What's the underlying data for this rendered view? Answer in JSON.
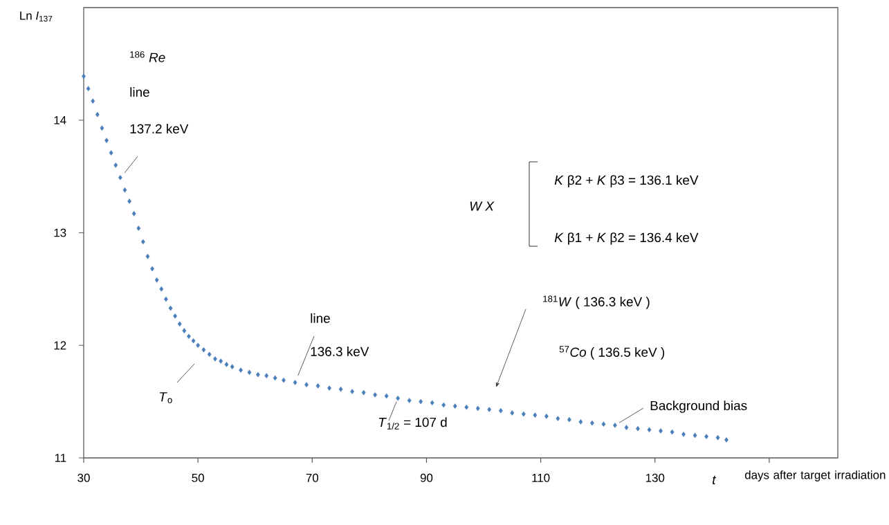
{
  "chart_data": {
    "type": "scatter",
    "xlabel": "days after target irradiation",
    "ylabel": "Ln *I*$_{137}$",
    "xlim": [
      30,
      162
    ],
    "ylim": [
      11,
      15
    ],
    "xticks": [
      30,
      50,
      70,
      90,
      110,
      130,
      {
        "value": 150,
        "label": null
      }
    ],
    "yticks": [
      11,
      12,
      13,
      14
    ],
    "marker": "diamond",
    "x": [
      30,
      30.8,
      31.6,
      32.4,
      33.2,
      34.0,
      34.8,
      35.6,
      36.4,
      37.2,
      38.0,
      38.8,
      39.6,
      40.4,
      41.2,
      42.0,
      42.8,
      43.6,
      44.4,
      45.2,
      46.0,
      46.8,
      47.6,
      48.4,
      49.2,
      50.0,
      51,
      52,
      53,
      54,
      55,
      56,
      57.5,
      59,
      60.5,
      62,
      63.5,
      65,
      67,
      69,
      71,
      73,
      75,
      77,
      79,
      81,
      83,
      85,
      87,
      89,
      91,
      93,
      95,
      97,
      99,
      101,
      103,
      105,
      107,
      109,
      111,
      113,
      115,
      117,
      119,
      121,
      123,
      125,
      127,
      129,
      131,
      133,
      135,
      137,
      139,
      141,
      142.5
    ],
    "series": [
      {
        "color": "#4a7ebb",
        "values": [
          14.39,
          14.28,
          14.17,
          14.05,
          13.93,
          13.82,
          13.71,
          13.6,
          13.49,
          13.38,
          13.28,
          13.17,
          13.04,
          12.92,
          12.79,
          12.68,
          12.58,
          12.5,
          12.41,
          12.33,
          12.26,
          12.19,
          12.13,
          12.08,
          12.04,
          12.0,
          11.96,
          11.92,
          11.88,
          11.86,
          11.83,
          11.81,
          11.78,
          11.76,
          11.74,
          11.73,
          11.71,
          11.69,
          11.67,
          11.65,
          11.64,
          11.62,
          11.61,
          11.59,
          11.58,
          11.56,
          11.55,
          11.53,
          11.51,
          11.5,
          11.49,
          11.47,
          11.46,
          11.45,
          11.44,
          11.43,
          11.42,
          11.4,
          11.39,
          11.38,
          11.37,
          11.35,
          11.34,
          11.32,
          11.31,
          11.3,
          11.29,
          11.27,
          11.26,
          11.25,
          11.24,
          11.23,
          11.21,
          11.2,
          11.19,
          11.18,
          11.16
        ]
      }
    ],
    "annotations": [
      "$^{186}$ *Re*",
      "line",
      "137.2  keV",
      "*T*$_{o}$",
      "line",
      {
        "text": "136.3  keV",
        "x": 67,
        "y": 11.67
      },
      {
        "text": "*T*$_{1/2}$ = 107 d",
        "x": 85,
        "y": 11.53
      },
      "*W X*",
      "*K* β2 + *K* β3 = 136.1 keV",
      "*K* β1 + *K* β2 = 136.4 keV",
      "$^{181}$*W* ( 136.3 keV )",
      "$^{57}$*Co*  ( 136.5 keV )",
      {
        "text": "Background bias",
        "x": 123,
        "y": 11.29
      },
      "*t*"
    ]
  }
}
